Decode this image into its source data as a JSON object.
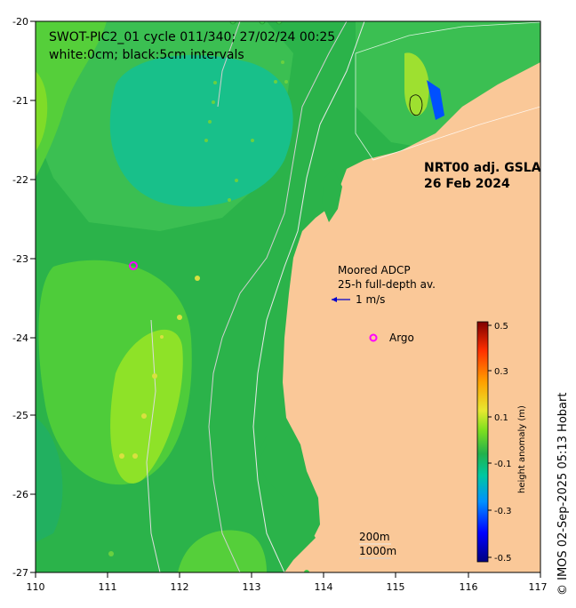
{
  "title": "SWOT-PIC2_01 cycle 011/340; 27/02/24 00:25",
  "subtitle": "white:0cm; black:5cm intervals",
  "product_label": "NRT00 adj. GSLA",
  "product_date": "26 Feb 2024",
  "adcp_label_1": "Moored ADCP",
  "adcp_label_2": "25-h full-depth av.",
  "velocity_scale": "1 m/s",
  "argo_label": "Argo",
  "isobath_1": "200m",
  "isobath_2": "1000m",
  "credit": "© IMOS 02-Sep-2025 05:13 Hobart",
  "colorbar": {
    "title": "height anomaly (m)",
    "ticks": [
      "0.5",
      "0.3",
      "0.1",
      "-0.1",
      "-0.3",
      "-0.5"
    ],
    "tick_values": [
      0.5,
      0.3,
      0.1,
      -0.1,
      -0.3,
      -0.5
    ],
    "range": [
      -0.5,
      0.5
    ],
    "colors": [
      "#00007f",
      "#0000ff",
      "#007fff",
      "#00c8a0",
      "#22b14c",
      "#7fe01e",
      "#e8e830",
      "#ffa000",
      "#ff3000",
      "#7f0000"
    ]
  },
  "x_axis_ticks": [
    "110",
    "111",
    "112",
    "113",
    "114",
    "115",
    "116",
    "117"
  ],
  "y_axis_ticks": [
    "-20",
    "-21",
    "-22",
    "-23",
    "-24",
    "-25",
    "-26",
    "-27"
  ],
  "colors": {
    "land": "#fac898",
    "ocean_base": "#2bb34a",
    "argo": "#ff00ff",
    "vector": "#0000cc"
  }
}
